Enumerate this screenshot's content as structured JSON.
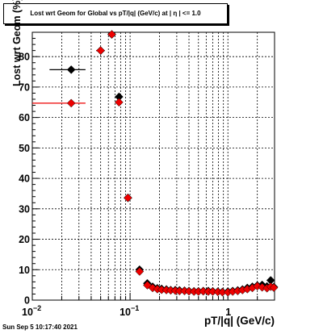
{
  "chart_data": {
    "type": "scatter",
    "title": "Lost wrt Geom for Global vs pT/|q| (GeV/c) at |  η | <= 1.0",
    "xlabel": "pT/|q| (GeV/c)",
    "ylabel": "Lost wrt Geom (%)",
    "xscale": "log",
    "xlim": [
      0.01,
      3.0
    ],
    "ylim": [
      0,
      88
    ],
    "grid": true,
    "yticks": [
      0,
      10,
      20,
      30,
      40,
      50,
      60,
      70,
      80
    ],
    "xtick_labels": [
      {
        "value": 0.01,
        "base": "10",
        "exp": "−2"
      },
      {
        "value": 0.1,
        "base": "10",
        "exp": "−1"
      },
      {
        "value": 1,
        "base": "1",
        "exp": ""
      }
    ],
    "series": [
      {
        "color": "#000000",
        "points": [
          {
            "x": 0.025,
            "y": 75.7,
            "xlo": 0.015,
            "xhi": 0.035
          },
          {
            "x": 0.05,
            "y": 82.0,
            "xlo": 0.045,
            "xhi": 0.055
          },
          {
            "x": 0.065,
            "y": 87.3
          },
          {
            "x": 0.077,
            "y": 66.8
          },
          {
            "x": 0.095,
            "y": 33.6
          },
          {
            "x": 0.125,
            "y": 10.0
          },
          {
            "x": 0.15,
            "y": 5.5
          },
          {
            "x": 0.17,
            "y": 4.4
          },
          {
            "x": 0.19,
            "y": 3.9
          },
          {
            "x": 0.21,
            "y": 3.7
          },
          {
            "x": 0.235,
            "y": 3.5
          },
          {
            "x": 0.26,
            "y": 3.3
          },
          {
            "x": 0.29,
            "y": 3.3
          },
          {
            "x": 0.32,
            "y": 3.2
          },
          {
            "x": 0.36,
            "y": 3.1
          },
          {
            "x": 0.4,
            "y": 3.0
          },
          {
            "x": 0.45,
            "y": 2.9
          },
          {
            "x": 0.5,
            "y": 2.9
          },
          {
            "x": 0.56,
            "y": 3.0
          },
          {
            "x": 0.63,
            "y": 3.0
          },
          {
            "x": 0.7,
            "y": 2.9
          },
          {
            "x": 0.79,
            "y": 2.8
          },
          {
            "x": 0.88,
            "y": 2.7
          },
          {
            "x": 1.0,
            "y": 2.8
          },
          {
            "x": 1.12,
            "y": 3.0
          },
          {
            "x": 1.26,
            "y": 3.2
          },
          {
            "x": 1.41,
            "y": 3.5
          },
          {
            "x": 1.58,
            "y": 4.0
          },
          {
            "x": 1.78,
            "y": 4.4
          },
          {
            "x": 2.0,
            "y": 4.8
          },
          {
            "x": 2.24,
            "y": 5.0
          },
          {
            "x": 2.51,
            "y": 4.5
          },
          {
            "x": 2.74,
            "y": 6.5
          },
          {
            "x": 2.95,
            "y": 4.3
          }
        ]
      },
      {
        "color": "#ee0000",
        "points": [
          {
            "x": 0.025,
            "y": 64.7,
            "xlo": 0.01,
            "xhi": 0.035
          },
          {
            "x": 0.05,
            "y": 82.0,
            "xlo": 0.045,
            "xhi": 0.055
          },
          {
            "x": 0.065,
            "y": 87.3
          },
          {
            "x": 0.077,
            "y": 65.0
          },
          {
            "x": 0.095,
            "y": 33.6,
            "xlo": 0.09,
            "xhi": 0.1
          },
          {
            "x": 0.125,
            "y": 9.4
          },
          {
            "x": 0.15,
            "y": 4.9
          },
          {
            "x": 0.17,
            "y": 4.0
          },
          {
            "x": 0.19,
            "y": 3.6
          },
          {
            "x": 0.21,
            "y": 3.4
          },
          {
            "x": 0.235,
            "y": 3.3
          },
          {
            "x": 0.26,
            "y": 3.2
          },
          {
            "x": 0.29,
            "y": 3.1
          },
          {
            "x": 0.32,
            "y": 3.0
          },
          {
            "x": 0.36,
            "y": 3.0
          },
          {
            "x": 0.4,
            "y": 2.9
          },
          {
            "x": 0.45,
            "y": 2.8
          },
          {
            "x": 0.5,
            "y": 2.8
          },
          {
            "x": 0.56,
            "y": 2.9
          },
          {
            "x": 0.63,
            "y": 2.8
          },
          {
            "x": 0.7,
            "y": 2.8
          },
          {
            "x": 0.79,
            "y": 2.7
          },
          {
            "x": 0.88,
            "y": 2.6
          },
          {
            "x": 1.0,
            "y": 2.6
          },
          {
            "x": 1.12,
            "y": 2.8
          },
          {
            "x": 1.26,
            "y": 3.0
          },
          {
            "x": 1.41,
            "y": 3.3
          },
          {
            "x": 1.58,
            "y": 3.6
          },
          {
            "x": 1.78,
            "y": 4.0
          },
          {
            "x": 2.0,
            "y": 4.6
          },
          {
            "x": 2.24,
            "y": 4.2
          },
          {
            "x": 2.51,
            "y": 3.9
          },
          {
            "x": 2.74,
            "y": 4.4
          },
          {
            "x": 2.95,
            "y": 4.1
          }
        ]
      }
    ]
  },
  "footer": {
    "datestamp": "Sun Sep  5 10:17:40 2021"
  }
}
